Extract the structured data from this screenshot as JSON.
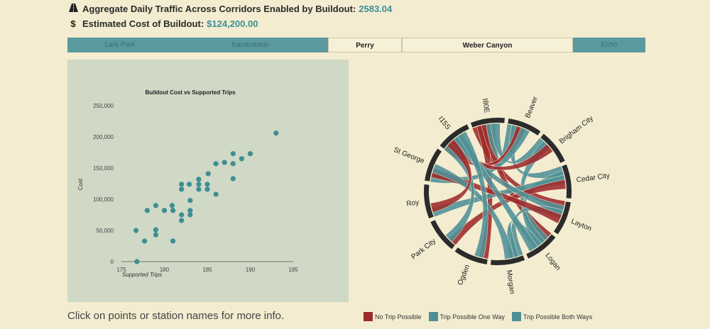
{
  "header": {
    "traffic_icon": "road-icon",
    "traffic_label": "Aggregate Daily Traffic Across Corridors Enabled by Buildout:",
    "traffic_value": "2583.04",
    "cost_icon": "dollar-icon",
    "cost_label": "Estimated Cost of Buildout:",
    "cost_value": "$124,200.00"
  },
  "tabs": [
    {
      "label": "Lark Park",
      "active": false
    },
    {
      "label": "Kananaskis",
      "active": false
    },
    {
      "label": "Perry",
      "active": true
    },
    {
      "label": "Weber Canyon",
      "active": true
    },
    {
      "label": "Echo",
      "active": false
    }
  ],
  "footer": {
    "hint": "Click on points or station names for more info."
  },
  "legend": [
    {
      "label": "No Trip Possible",
      "color": "#9e2a2b"
    },
    {
      "label": "Trip Possible One Way",
      "color": "#4e8f96"
    },
    {
      "label": "Trip Possible Both Ways",
      "color": "#4e8f96"
    }
  ],
  "colors": {
    "accent": "#3f8e93",
    "point": "#3f8e93",
    "no_trip": "#9e2a2b",
    "trip": "#4e8f96",
    "ring": "#2b2b2b"
  },
  "chart_data": [
    {
      "type": "scatter",
      "title": "Buildout Cost vs Supported Trips",
      "xlabel": "Supported Trips",
      "ylabel": "Cost",
      "xlim": [
        175,
        195
      ],
      "ylim": [
        0,
        250000
      ],
      "xticks": [
        "175",
        "180",
        "185",
        "190",
        "195"
      ],
      "yticks": [
        "0",
        "50,000",
        "100,000",
        "150,000",
        "200,000",
        "250,000"
      ],
      "points": [
        {
          "x": 176.8,
          "y": 0
        },
        {
          "x": 176.7,
          "y": 50000
        },
        {
          "x": 177.7,
          "y": 33000
        },
        {
          "x": 178,
          "y": 82000
        },
        {
          "x": 179,
          "y": 90000
        },
        {
          "x": 179,
          "y": 51000
        },
        {
          "x": 179,
          "y": 43000
        },
        {
          "x": 180,
          "y": 82000
        },
        {
          "x": 180.9,
          "y": 90000
        },
        {
          "x": 181,
          "y": 82000
        },
        {
          "x": 181,
          "y": 33000
        },
        {
          "x": 182,
          "y": 116000
        },
        {
          "x": 182,
          "y": 124000
        },
        {
          "x": 182,
          "y": 75000
        },
        {
          "x": 182,
          "y": 66000
        },
        {
          "x": 182.9,
          "y": 124000
        },
        {
          "x": 183,
          "y": 98000
        },
        {
          "x": 183,
          "y": 82000
        },
        {
          "x": 183,
          "y": 75000
        },
        {
          "x": 184,
          "y": 132000
        },
        {
          "x": 184,
          "y": 124000
        },
        {
          "x": 184,
          "y": 116000
        },
        {
          "x": 185,
          "y": 124000
        },
        {
          "x": 185,
          "y": 116000
        },
        {
          "x": 185.1,
          "y": 141000
        },
        {
          "x": 186,
          "y": 108000
        },
        {
          "x": 186,
          "y": 157000
        },
        {
          "x": 187,
          "y": 159000
        },
        {
          "x": 188,
          "y": 173000
        },
        {
          "x": 188,
          "y": 157000
        },
        {
          "x": 188,
          "y": 133000
        },
        {
          "x": 189,
          "y": 165000
        },
        {
          "x": 190,
          "y": 173000
        },
        {
          "x": 193,
          "y": 206000
        }
      ]
    },
    {
      "type": "chord",
      "stations": [
        "Beaver",
        "Brigham City",
        "Cedar City",
        "Layton",
        "Logan",
        "Morgan",
        "Ogden",
        "Park City",
        "Roy",
        "St George",
        "I15S",
        "I80E"
      ],
      "links": [
        {
          "from": "I80E",
          "to": "Layton",
          "status": "No Trip Possible"
        },
        {
          "from": "I80E",
          "to": "Ogden",
          "status": "No Trip Possible"
        },
        {
          "from": "I80E",
          "to": "Logan",
          "status": "No Trip Possible"
        },
        {
          "from": "I80E",
          "to": "Beaver",
          "status": "Trip Possible Both Ways"
        },
        {
          "from": "I80E",
          "to": "Brigham City",
          "status": "Trip Possible One Way"
        },
        {
          "from": "Beaver",
          "to": "Cedar City",
          "status": "Trip Possible Both Ways"
        },
        {
          "from": "Beaver",
          "to": "I15S",
          "status": "No Trip Possible"
        },
        {
          "from": "Beaver",
          "to": "St George",
          "status": "Trip Possible Both Ways"
        },
        {
          "from": "Brigham City",
          "to": "Logan",
          "status": "Trip Possible One Way"
        },
        {
          "from": "Brigham City",
          "to": "I15S",
          "status": "No Trip Possible"
        },
        {
          "from": "Cedar City",
          "to": "Logan",
          "status": "Trip Possible Both Ways"
        },
        {
          "from": "Cedar City",
          "to": "Roy",
          "status": "Trip Possible Both Ways"
        },
        {
          "from": "Cedar City",
          "to": "Park City",
          "status": "No Trip Possible"
        },
        {
          "from": "Layton",
          "to": "I15S",
          "status": "Trip Possible Both Ways"
        },
        {
          "from": "Layton",
          "to": "Morgan",
          "status": "Trip Possible One Way"
        },
        {
          "from": "Layton",
          "to": "St George",
          "status": "No Trip Possible"
        },
        {
          "from": "Logan",
          "to": "Morgan",
          "status": "Trip Possible Both Ways"
        },
        {
          "from": "Logan",
          "to": "I15S",
          "status": "Trip Possible One Way"
        },
        {
          "from": "Morgan",
          "to": "St George",
          "status": "Trip Possible Both Ways"
        },
        {
          "from": "Ogden",
          "to": "I15S",
          "status": "Trip Possible Both Ways"
        },
        {
          "from": "Park City",
          "to": "I15S",
          "status": "Trip Possible One Way"
        },
        {
          "from": "Roy",
          "to": "I15S",
          "status": "No Trip Possible"
        }
      ]
    }
  ]
}
